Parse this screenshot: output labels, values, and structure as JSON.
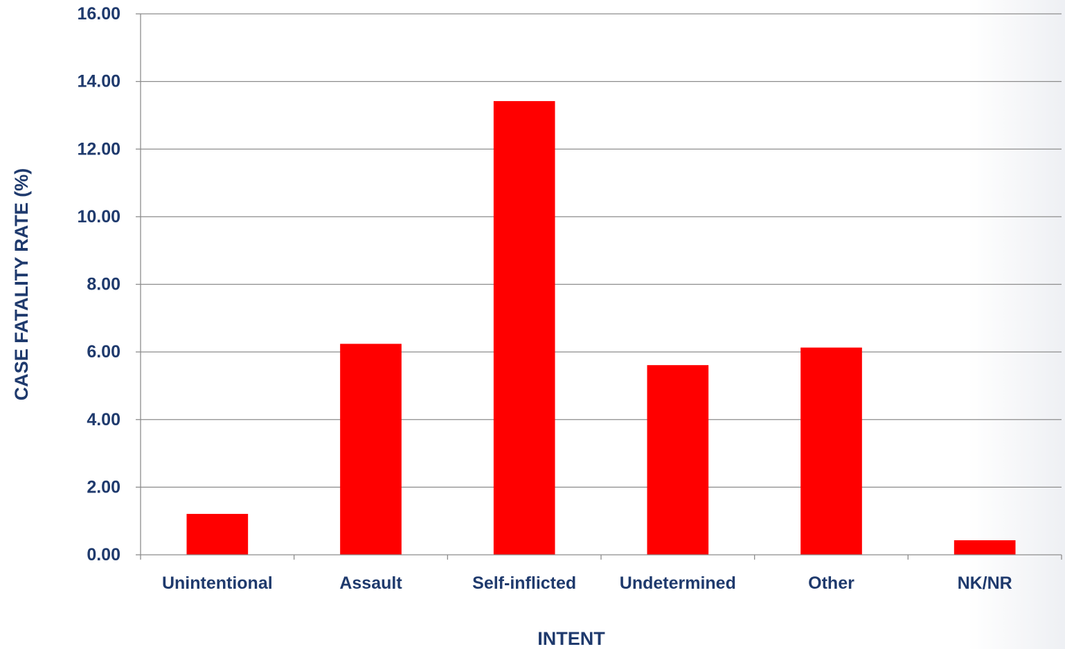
{
  "chart_data": {
    "type": "bar",
    "categories": [
      "Unintentional",
      "Assault",
      "Self-inflicted",
      "Undetermined",
      "Other",
      "NK/NR"
    ],
    "values": [
      1.21,
      6.24,
      13.42,
      5.61,
      6.13,
      0.43
    ],
    "xlabel": "INTENT",
    "ylabel": "CASE FATALITY RATE (%)",
    "ylim": [
      0,
      16
    ],
    "yticks": [
      "0.00",
      "2.00",
      "4.00",
      "6.00",
      "8.00",
      "10.00",
      "12.00",
      "14.00",
      "16.00"
    ],
    "grid": true,
    "legend": "none"
  },
  "colors": {
    "bar": "#ff0000",
    "text": "#1f3a6d",
    "grid": "#8c8c8c",
    "axis": "#8c8c8c"
  }
}
